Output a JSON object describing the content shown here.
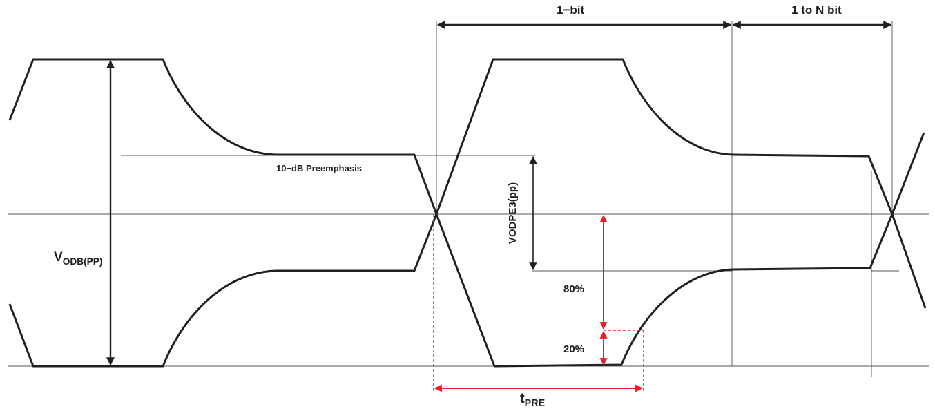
{
  "labels": {
    "one_bit": "1−bit",
    "one_to_n_bit": "1 to N bit",
    "preemphasis": "10−dB Preemphasis",
    "vodb_main": "V",
    "vodb_sub": "ODB(PP)",
    "vodpe3": "VODPE3(pp)",
    "pct_80": "80%",
    "pct_20": "20%",
    "tpre_main": "t",
    "tpre_sub": "PRE"
  },
  "colors": {
    "waveform": "#231f20",
    "reference_line": "#231f20",
    "timing_marker": "#ed1c24",
    "cursor_line": "#2e3192"
  }
}
